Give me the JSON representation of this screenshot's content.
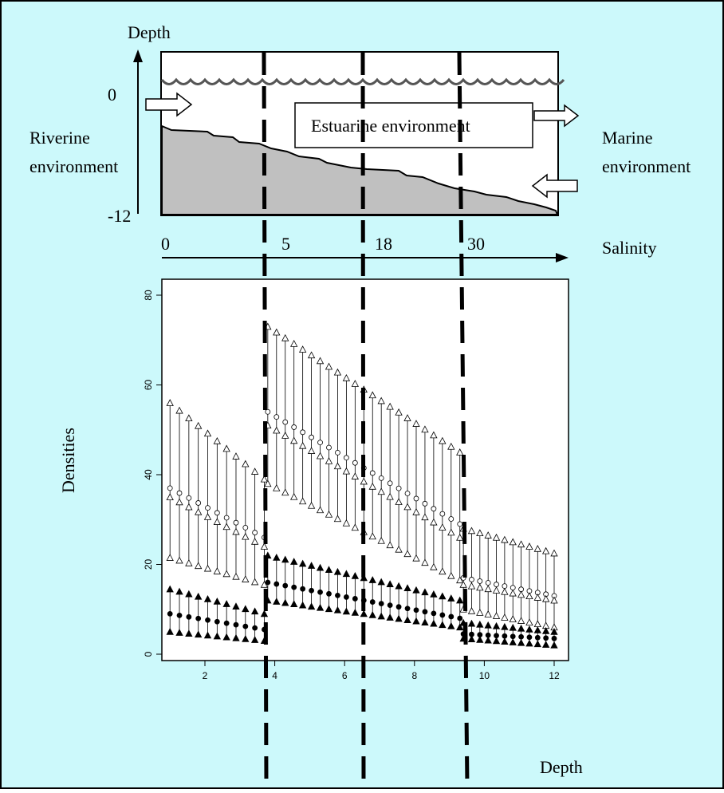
{
  "colors": {
    "background": "#ccf9fb",
    "seabed": "#c0c0c0",
    "frame": "#000000",
    "panel": "#ffffff"
  },
  "schematic": {
    "depth_label": "Depth",
    "depth_top": "0",
    "depth_bottom": "-12",
    "riverine_label_1": "Riverine",
    "riverine_label_2": "environment",
    "estuarine_label": "Estuarine environment",
    "marine_label_1": "Marine",
    "marine_label_2": "environment",
    "salinity_label": "Salinity",
    "salinity_ticks": [
      "0",
      "5",
      "18",
      "30"
    ]
  },
  "chart_data": {
    "type": "scatter",
    "xlabel": "Depth",
    "ylabel": "Densities",
    "xlim": [
      1,
      12
    ],
    "ylim": [
      0,
      80
    ],
    "xticks": [
      2,
      4,
      6,
      8,
      10,
      12
    ],
    "yticks": [
      0,
      20,
      40,
      60,
      80
    ],
    "zone_boundaries_depth": [
      3.8,
      6.5,
      9.4
    ],
    "points_per_zone": [
      11,
      23,
      12
    ],
    "zones": [
      {
        "from": 1.0,
        "to": 3.7,
        "open_triangle_upper": [
          56,
          39
        ],
        "open_circle": [
          37,
          26
        ],
        "open_triangle_lower": [
          35,
          24
        ],
        "open_triangle_bottom": [
          21.5,
          15.5
        ],
        "filled_triangle_upper": [
          14.5,
          9
        ],
        "filled_circle": [
          9,
          5.5
        ],
        "filled_triangle_lower": [
          5,
          3
        ]
      },
      {
        "from": 3.8,
        "to": 9.3,
        "open_triangle_upper": [
          73,
          45
        ],
        "open_circle": [
          54,
          29
        ],
        "open_triangle_lower": [
          51,
          26
        ],
        "open_triangle_bottom": [
          38,
          16.5
        ],
        "filled_triangle_upper": [
          22,
          12
        ],
        "filled_circle": [
          16,
          8
        ],
        "filled_triangle_lower": [
          12,
          6
        ]
      },
      {
        "from": 9.4,
        "to": 12.0,
        "open_triangle_upper": [
          28,
          22.5
        ],
        "open_circle": [
          17,
          13
        ],
        "open_triangle_lower": [
          15.5,
          12
        ],
        "open_triangle_bottom": [
          10,
          6
        ],
        "filled_triangle_upper": [
          7,
          5
        ],
        "filled_circle": [
          4.5,
          3.5
        ],
        "filled_triangle_lower": [
          3.5,
          2
        ]
      }
    ]
  }
}
